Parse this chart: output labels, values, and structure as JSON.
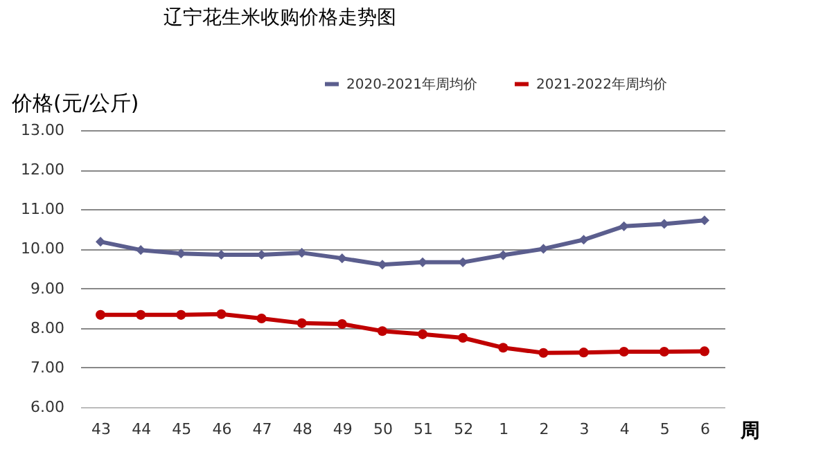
{
  "chart_data": {
    "type": "line",
    "title": "辽宁花生米收购价格走势图",
    "ylabel": "价格(元/公斤)",
    "xlabel": "周",
    "categories": [
      "43",
      "44",
      "45",
      "46",
      "47",
      "48",
      "49",
      "50",
      "51",
      "52",
      "1",
      "2",
      "3",
      "4",
      "5",
      "6"
    ],
    "series": [
      {
        "name": "2020-2021年周均价",
        "color": "#5b5e8e",
        "marker": "diamond",
        "values": [
          10.18,
          9.97,
          9.88,
          9.85,
          9.85,
          9.9,
          9.76,
          9.6,
          9.66,
          9.66,
          9.84,
          10.0,
          10.23,
          10.57,
          10.63,
          10.72
        ]
      },
      {
        "name": "2021-2022年周均价",
        "color": "#c00000",
        "marker": "circle",
        "values": [
          8.33,
          8.33,
          8.33,
          8.35,
          8.24,
          8.12,
          8.1,
          7.92,
          7.84,
          7.75,
          7.5,
          7.37,
          7.38,
          7.4,
          7.4,
          7.41
        ]
      }
    ],
    "ylim": [
      6,
      13
    ],
    "yticks": [
      {
        "value": 6,
        "label": "6.00"
      },
      {
        "value": 7,
        "label": "7.00"
      },
      {
        "value": 8,
        "label": "8.00"
      },
      {
        "value": 9,
        "label": "9.00"
      },
      {
        "value": 10,
        "label": "10.00"
      },
      {
        "value": 11,
        "label": "11.00"
      },
      {
        "value": 12,
        "label": "12.00"
      },
      {
        "value": 13,
        "label": "13.00"
      }
    ],
    "grid": "y",
    "legend": "top right",
    "line_style": "solid"
  }
}
